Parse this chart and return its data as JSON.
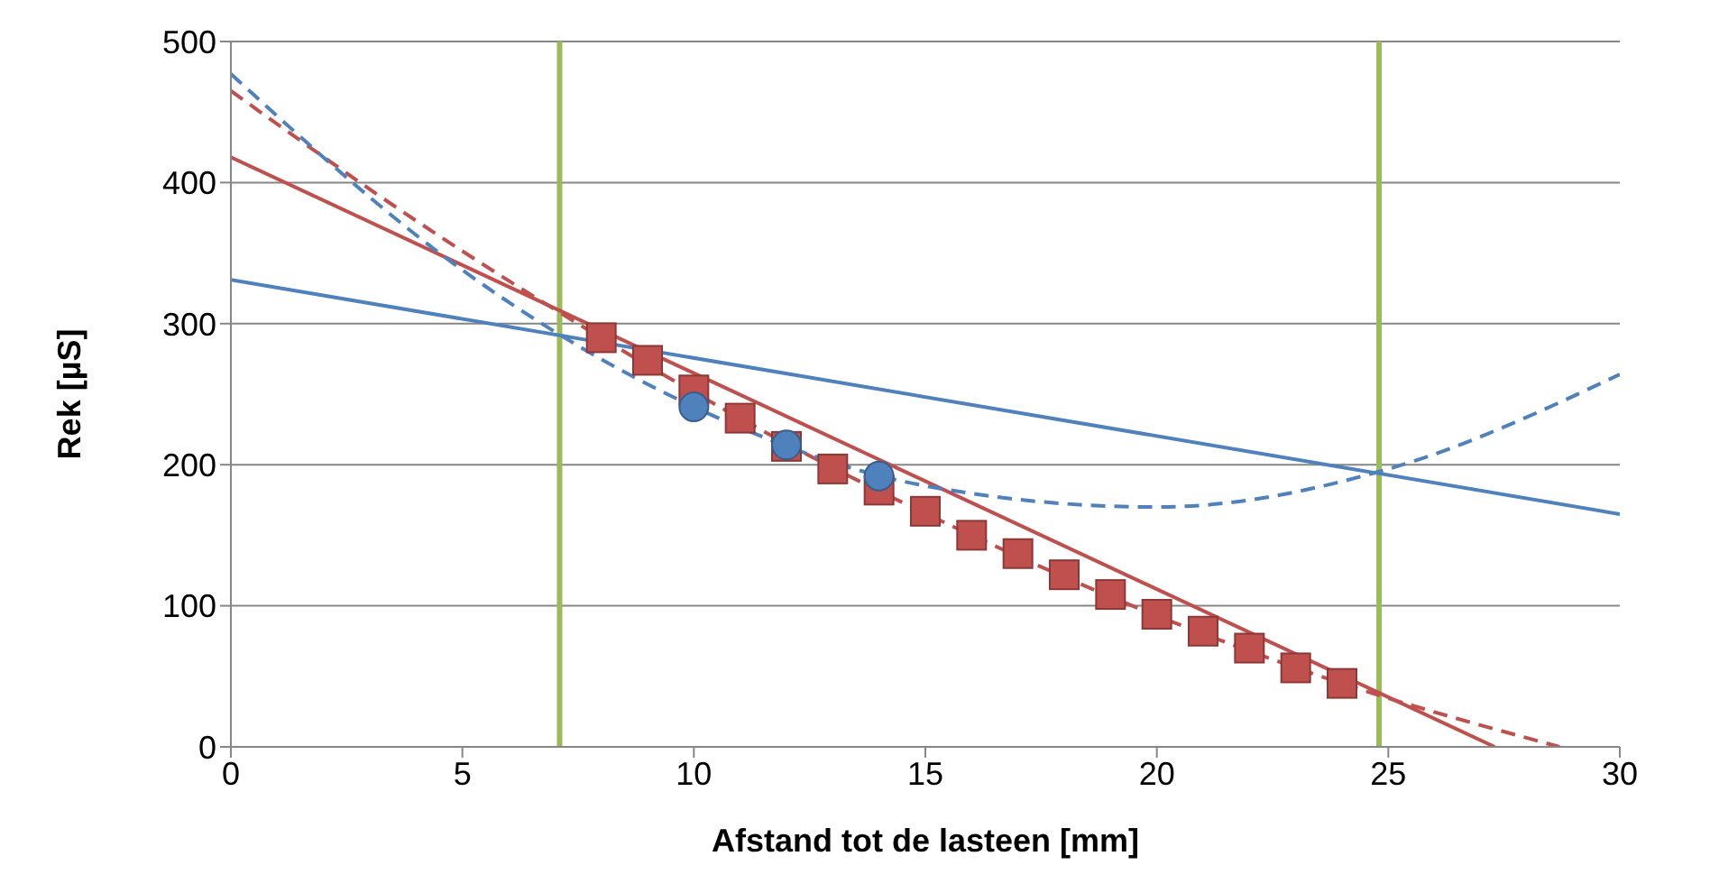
{
  "chart_data": {
    "type": "scatter",
    "xlabel": "Afstand tot de lasteen [mm]",
    "ylabel": "Rek [µS]",
    "xlim": [
      0,
      30
    ],
    "xticks": [
      0,
      5,
      10,
      15,
      20,
      25,
      30
    ],
    "ylim": [
      0,
      500
    ],
    "yticks": [
      0,
      100,
      200,
      300,
      400,
      500
    ],
    "grid": "y",
    "series": [
      {
        "type": "line",
        "color": "#c0504d",
        "line_style": "solid",
        "marker": "none",
        "x": [
          0,
          27.3
        ],
        "values": [
          418,
          0
        ]
      },
      {
        "type": "line",
        "color": "#c0504d",
        "line_style": "dashed",
        "marker": "none",
        "x": [
          0,
          4,
          8,
          12,
          16,
          20,
          24,
          28.7
        ],
        "values": [
          465,
          373,
          290,
          215,
          150,
          93,
          45,
          0
        ]
      },
      {
        "type": "line",
        "color": "#4f81bd",
        "line_style": "solid",
        "marker": "none",
        "x": [
          0,
          30
        ],
        "values": [
          331,
          165
        ]
      },
      {
        "type": "line",
        "color": "#4f81bd",
        "line_style": "dashed",
        "marker": "none",
        "x": [
          0,
          5,
          10,
          15,
          20,
          25,
          30
        ],
        "values": [
          477,
          338,
          241,
          185,
          170,
          197,
          264
        ]
      },
      {
        "color": "#c0504d",
        "marker": "square",
        "x": [
          8,
          9,
          10,
          11,
          12,
          13,
          14,
          15,
          16,
          17,
          18,
          19,
          20,
          21,
          22,
          23,
          24
        ],
        "values": [
          290,
          274,
          253,
          233,
          213,
          197,
          182,
          167,
          150,
          137,
          122,
          108,
          94,
          82,
          70,
          56,
          45
        ]
      },
      {
        "color": "#4f81bd",
        "marker": "circle",
        "x": [
          10,
          12,
          14
        ],
        "values": [
          241,
          214,
          192
        ]
      }
    ],
    "ref_lines": [
      {
        "axis": "x",
        "value": 7.1,
        "color": "#9bbb59"
      },
      {
        "axis": "x",
        "value": 24.8,
        "color": "#9bbb59"
      }
    ]
  }
}
